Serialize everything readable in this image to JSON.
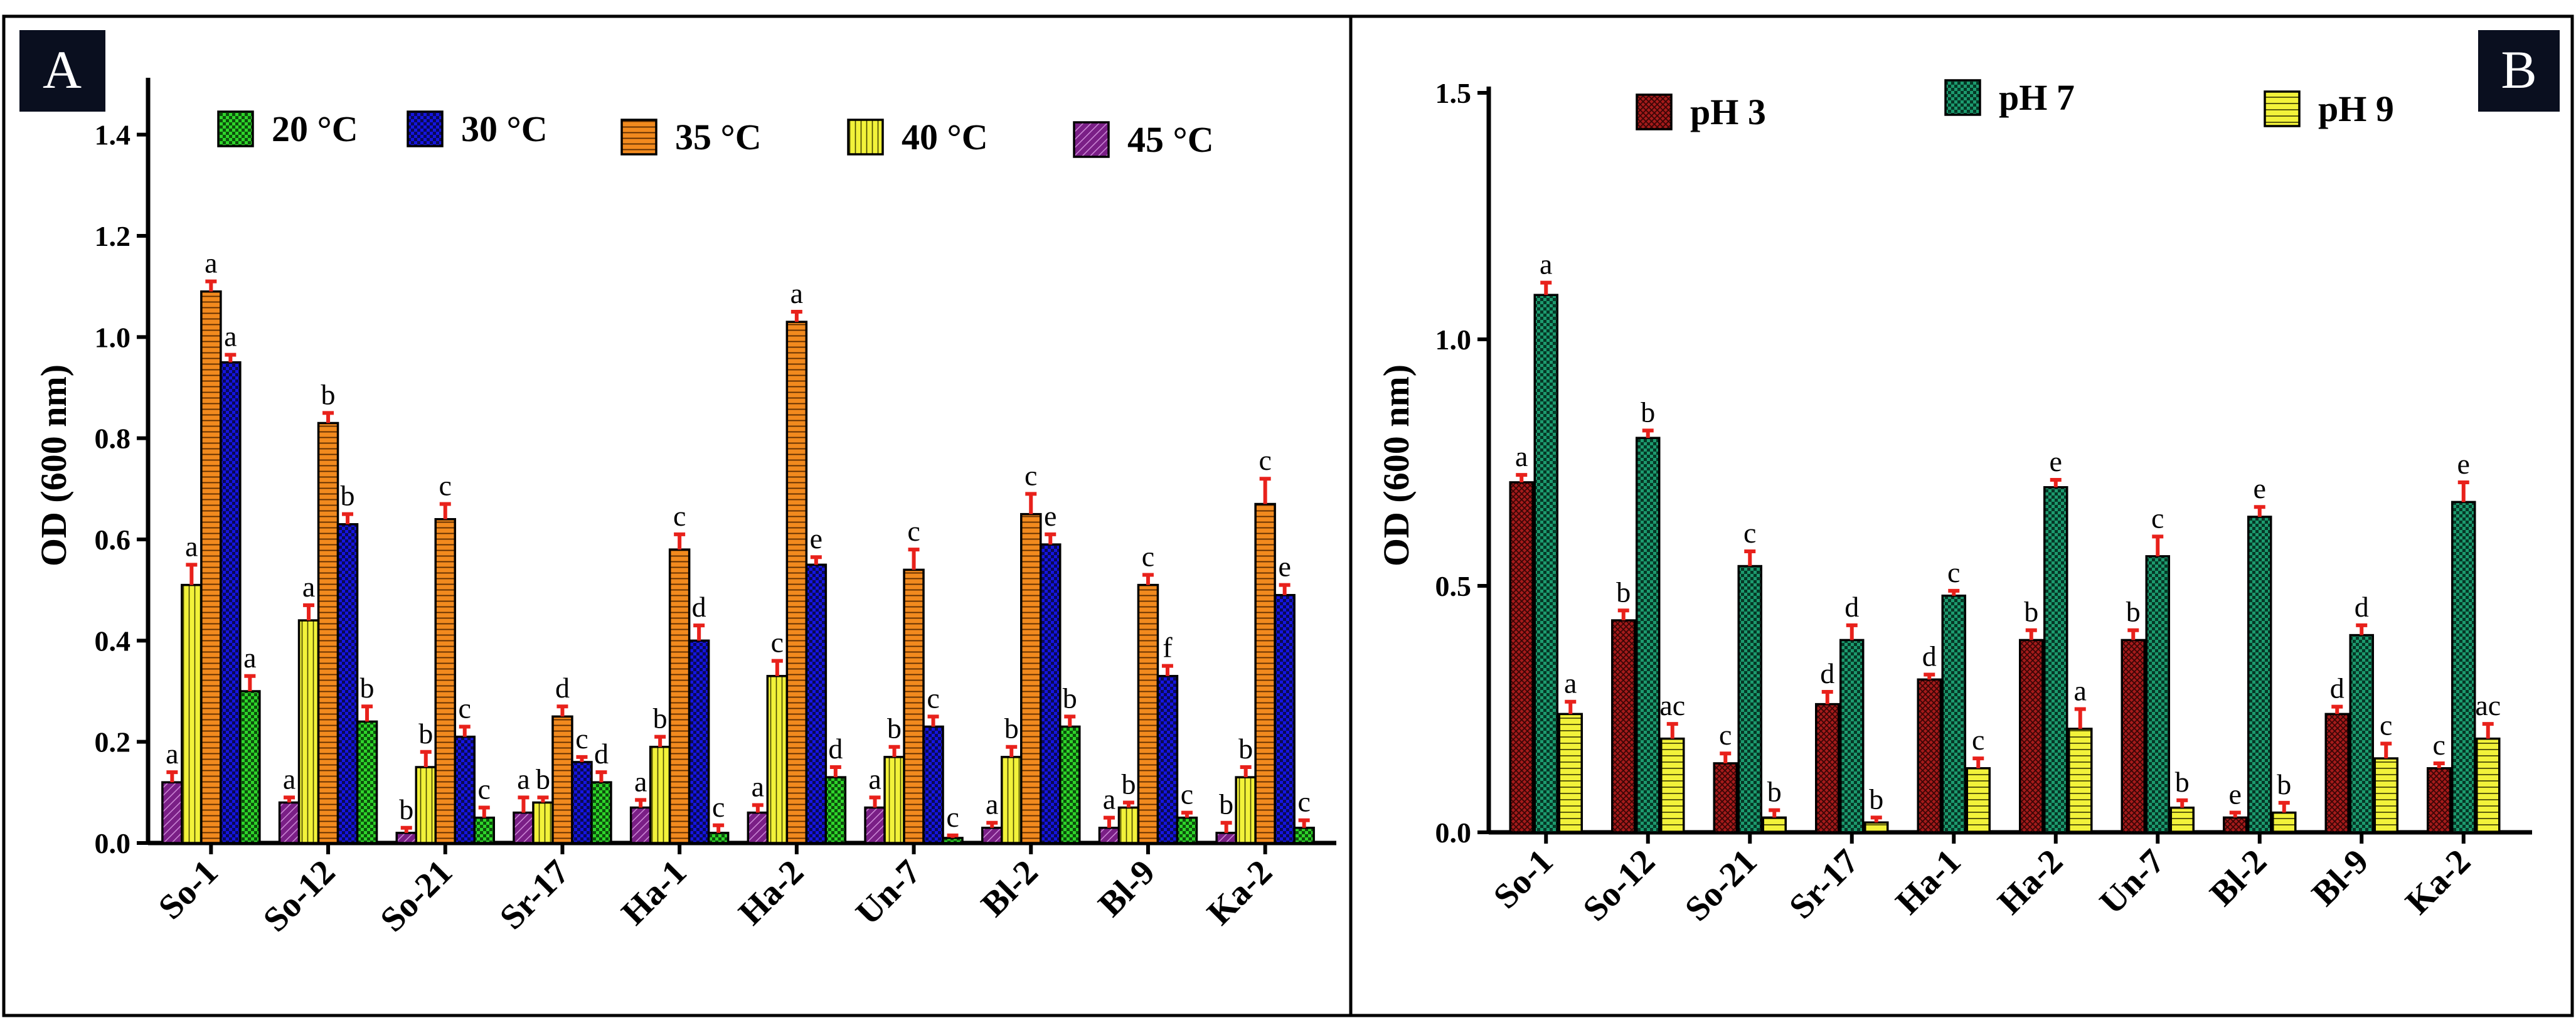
{
  "figure": {
    "panels": [
      {
        "badge": "A"
      },
      {
        "badge": "B"
      }
    ]
  },
  "chart_data": [
    {
      "type": "bar",
      "panel": "A",
      "ylabel": "OD (600 nm)",
      "xlabel": "",
      "ylim": [
        0,
        1.5
      ],
      "yticks": [
        "0.0",
        "0.2",
        "0.4",
        "0.6",
        "0.8",
        "1.0",
        "1.2",
        "1.4"
      ],
      "ytick_values": [
        0,
        0.2,
        0.4,
        0.6,
        0.8,
        1.0,
        1.2,
        1.4
      ],
      "categories": [
        "So-1",
        "So-12",
        "So-21",
        "Sr-17",
        "Ha-1",
        "Ha-2",
        "Un-7",
        "Bl-2",
        "Bl-9",
        "Ka-2"
      ],
      "legend_position": "top",
      "series": [
        {
          "name": "45 °C",
          "color": "#7a1f86",
          "pattern": "diagonal",
          "values": [
            0.12,
            0.08,
            0.02,
            0.06,
            0.07,
            0.06,
            0.07,
            0.03,
            0.03,
            0.02
          ],
          "errors": [
            0.02,
            0.01,
            0.01,
            0.03,
            0.015,
            0.015,
            0.02,
            0.01,
            0.02,
            0.02
          ],
          "letters": [
            "a",
            "a",
            "b",
            "a",
            "a",
            "a",
            "a",
            "a",
            "a",
            "b"
          ]
        },
        {
          "name": "40 °C",
          "color": "#f2f23a",
          "pattern": "vertical",
          "values": [
            0.51,
            0.44,
            0.15,
            0.08,
            0.19,
            0.33,
            0.17,
            0.17,
            0.07,
            0.13
          ],
          "errors": [
            0.04,
            0.03,
            0.03,
            0.01,
            0.02,
            0.03,
            0.02,
            0.02,
            0.01,
            0.02
          ],
          "letters": [
            "a",
            "a",
            "b",
            "b",
            "b",
            "c",
            "b",
            "b",
            "b",
            "b"
          ]
        },
        {
          "name": "35 °C",
          "color": "#f28a1e",
          "pattern": "horizontal",
          "values": [
            1.09,
            0.83,
            0.64,
            0.25,
            0.58,
            1.03,
            0.54,
            0.65,
            0.51,
            0.67
          ],
          "errors": [
            0.02,
            0.02,
            0.03,
            0.02,
            0.03,
            0.02,
            0.04,
            0.04,
            0.02,
            0.05
          ],
          "letters": [
            "a",
            "b",
            "c",
            "d",
            "c",
            "a",
            "c",
            "c",
            "c",
            "c"
          ]
        },
        {
          "name": "30 °C",
          "color": "#1515e0",
          "pattern": "check",
          "values": [
            0.95,
            0.63,
            0.21,
            0.16,
            0.4,
            0.55,
            0.23,
            0.59,
            0.33,
            0.49
          ],
          "errors": [
            0.015,
            0.02,
            0.02,
            0.01,
            0.03,
            0.015,
            0.02,
            0.02,
            0.02,
            0.02
          ],
          "letters": [
            "a",
            "b",
            "c",
            "c",
            "d",
            "e",
            "c",
            "e",
            "f",
            "e"
          ]
        },
        {
          "name": "20 °C",
          "color": "#2ed42a",
          "pattern": "check",
          "values": [
            0.3,
            0.24,
            0.05,
            0.12,
            0.02,
            0.13,
            0.01,
            0.23,
            0.05,
            0.03
          ],
          "errors": [
            0.03,
            0.03,
            0.02,
            0.02,
            0.015,
            0.02,
            0.005,
            0.02,
            0.01,
            0.015
          ],
          "letters": [
            "a",
            "b",
            "c",
            "d",
            "c",
            "d",
            "c",
            "b",
            "c",
            "c"
          ]
        }
      ],
      "legend_order": [
        "20 °C",
        "30 °C",
        "35 °C",
        "40 °C",
        "45 °C"
      ]
    },
    {
      "type": "bar",
      "panel": "B",
      "ylabel": "OD (600 nm)",
      "xlabel": "",
      "ylim": [
        0,
        1.5
      ],
      "yticks": [
        "0.0",
        "0.5",
        "1.0",
        "1.5"
      ],
      "ytick_values": [
        0,
        0.5,
        1.0,
        1.5
      ],
      "categories": [
        "So-1",
        "So-12",
        "So-21",
        "Sr-17",
        "Ha-1",
        "Ha-2",
        "Un-7",
        "Bl-2",
        "Bl-9",
        "Ka-2"
      ],
      "legend_position": "top",
      "series": [
        {
          "name": "pH 3",
          "color": "#a51b1b",
          "pattern": "crosshatch",
          "values": [
            0.71,
            0.43,
            0.14,
            0.26,
            0.31,
            0.39,
            0.39,
            0.03,
            0.24,
            0.13
          ],
          "errors": [
            0.015,
            0.02,
            0.02,
            0.025,
            0.01,
            0.02,
            0.02,
            0.01,
            0.015,
            0.01
          ],
          "letters": [
            "a",
            "b",
            "c",
            "d",
            "d",
            "b",
            "b",
            "e",
            "d",
            "c"
          ]
        },
        {
          "name": "pH 7",
          "color": "#1c9a6e",
          "pattern": "check",
          "values": [
            1.09,
            0.8,
            0.54,
            0.39,
            0.48,
            0.7,
            0.56,
            0.64,
            0.4,
            0.67
          ],
          "errors": [
            0.025,
            0.015,
            0.03,
            0.03,
            0.01,
            0.015,
            0.04,
            0.02,
            0.02,
            0.04
          ],
          "letters": [
            "a",
            "b",
            "c",
            "d",
            "c",
            "e",
            "c",
            "e",
            "d",
            "e"
          ]
        },
        {
          "name": "pH 9",
          "color": "#f2f23a",
          "pattern": "horizontal",
          "values": [
            0.24,
            0.19,
            0.03,
            0.02,
            0.13,
            0.21,
            0.05,
            0.04,
            0.15,
            0.19
          ],
          "errors": [
            0.025,
            0.03,
            0.015,
            0.01,
            0.02,
            0.04,
            0.015,
            0.02,
            0.03,
            0.03
          ],
          "letters": [
            "a",
            "ac",
            "b",
            "b",
            "c",
            "a",
            "b",
            "b",
            "c",
            "ac"
          ]
        }
      ],
      "legend_order": [
        "pH 3",
        "pH 7",
        "pH 9"
      ]
    }
  ]
}
